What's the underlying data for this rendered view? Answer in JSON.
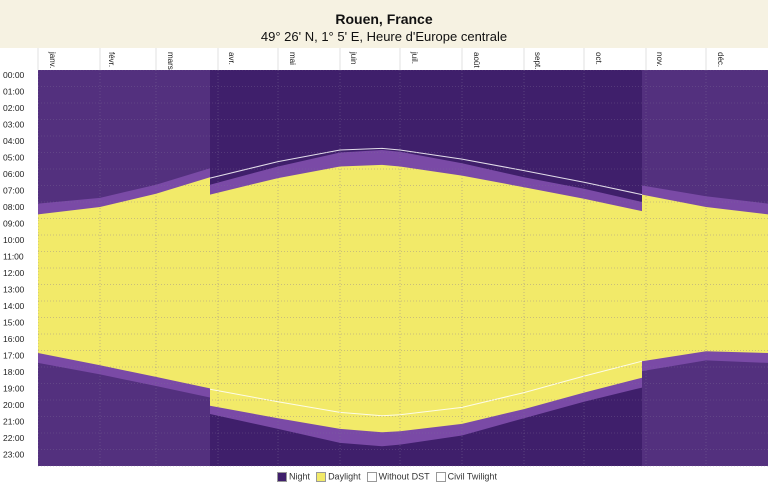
{
  "chart_data": {
    "type": "area",
    "title": "Rouen, France",
    "subtitle": "49° 26' N, 1° 5' E, Heure d'Europe centrale",
    "months": [
      "janv.",
      "févr.",
      "mars",
      "avr.",
      "mai",
      "juin",
      "juil.",
      "août",
      "sept.",
      "oct.",
      "nov.",
      "déc."
    ],
    "month_start_days": [
      0,
      31,
      59,
      90,
      120,
      151,
      181,
      212,
      243,
      273,
      304,
      334
    ],
    "year_days": 365,
    "y_ticks": [
      "00:00",
      "01:00",
      "02:00",
      "03:00",
      "04:00",
      "05:00",
      "06:00",
      "07:00",
      "08:00",
      "09:00",
      "10:00",
      "11:00",
      "12:00",
      "13:00",
      "14:00",
      "15:00",
      "16:00",
      "17:00",
      "18:00",
      "19:00",
      "20:00",
      "21:00",
      "22:00",
      "23:00"
    ],
    "ylim": [
      0,
      24
    ],
    "dst_start_day": 86,
    "dst_end_day": 302,
    "series": [
      {
        "name": "Daylight",
        "key": "daylight",
        "sunrise_hours": [
          [
            0,
            8.75
          ],
          [
            31,
            8.3
          ],
          [
            59,
            7.5
          ],
          [
            86,
            6.5
          ],
          [
            86,
            7.55
          ],
          [
            120,
            6.55
          ],
          [
            151,
            5.85
          ],
          [
            172,
            5.75
          ],
          [
            181,
            5.85
          ],
          [
            212,
            6.4
          ],
          [
            243,
            7.1
          ],
          [
            273,
            7.8
          ],
          [
            302,
            8.55
          ],
          [
            302,
            7.55
          ],
          [
            334,
            8.3
          ],
          [
            365,
            8.75
          ]
        ],
        "sunset_hours": [
          [
            0,
            17.15
          ],
          [
            31,
            17.9
          ],
          [
            59,
            18.6
          ],
          [
            86,
            19.3
          ],
          [
            86,
            20.35
          ],
          [
            120,
            21.1
          ],
          [
            151,
            21.75
          ],
          [
            172,
            21.95
          ],
          [
            181,
            21.9
          ],
          [
            212,
            21.45
          ],
          [
            243,
            20.55
          ],
          [
            273,
            19.55
          ],
          [
            302,
            18.65
          ],
          [
            302,
            17.65
          ],
          [
            334,
            17.05
          ],
          [
            365,
            17.15
          ]
        ]
      },
      {
        "name": "Civil Twilight",
        "key": "civil_twilight",
        "dawn_hours": [
          [
            0,
            8.1
          ],
          [
            31,
            7.75
          ],
          [
            59,
            6.95
          ],
          [
            86,
            5.95
          ],
          [
            86,
            6.95
          ],
          [
            120,
            5.85
          ],
          [
            151,
            5.0
          ],
          [
            172,
            4.85
          ],
          [
            181,
            4.95
          ],
          [
            212,
            5.65
          ],
          [
            243,
            6.5
          ],
          [
            273,
            7.2
          ],
          [
            302,
            8.0
          ],
          [
            302,
            7.0
          ],
          [
            334,
            7.65
          ],
          [
            365,
            8.1
          ]
        ],
        "dusk_hours": [
          [
            0,
            17.75
          ],
          [
            31,
            18.45
          ],
          [
            59,
            19.15
          ],
          [
            86,
            19.85
          ],
          [
            86,
            20.85
          ],
          [
            120,
            21.75
          ],
          [
            151,
            22.6
          ],
          [
            172,
            22.8
          ],
          [
            181,
            22.7
          ],
          [
            212,
            22.15
          ],
          [
            243,
            21.1
          ],
          [
            273,
            20.1
          ],
          [
            302,
            19.25
          ],
          [
            302,
            18.25
          ],
          [
            334,
            17.6
          ],
          [
            365,
            17.75
          ]
        ]
      },
      {
        "name": "Night",
        "key": "night"
      }
    ],
    "without_dst": {
      "name": "Without DST",
      "sunrise_hours": [
        [
          86,
          6.55
        ],
        [
          120,
          5.55
        ],
        [
          151,
          4.85
        ],
        [
          172,
          4.75
        ],
        [
          181,
          4.85
        ],
        [
          212,
          5.4
        ],
        [
          243,
          6.1
        ],
        [
          273,
          6.8
        ],
        [
          302,
          7.55
        ]
      ],
      "sunset_hours": [
        [
          86,
          19.35
        ],
        [
          120,
          20.1
        ],
        [
          151,
          20.75
        ],
        [
          172,
          20.95
        ],
        [
          181,
          20.9
        ],
        [
          212,
          20.45
        ],
        [
          243,
          19.55
        ],
        [
          273,
          18.55
        ],
        [
          302,
          17.65
        ]
      ]
    },
    "legend": [
      {
        "label": "Night",
        "color": "#3f1f6b"
      },
      {
        "label": "Daylight",
        "color": "#f2ea69"
      },
      {
        "label": "Without DST",
        "color": "#ffffff"
      },
      {
        "label": "Civil Twilight",
        "color": "#ffffff"
      }
    ],
    "colors": {
      "night": "#3f1f6b",
      "night_nodst": "#53307e",
      "twilight": "#7a4aa6",
      "daylight": "#f2ea69",
      "grid": "#7f6e98",
      "header_band": "#f6f2e2",
      "axis_bg": "#ffffff"
    },
    "grid": true,
    "legend_position": "bottom-center"
  }
}
